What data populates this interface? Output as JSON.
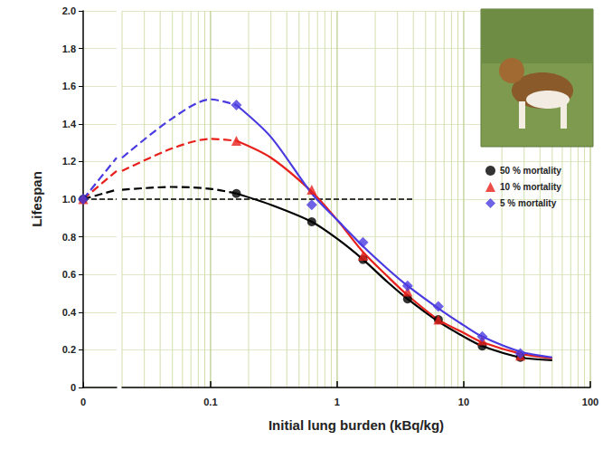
{
  "chart_data": {
    "type": "line",
    "x_label": "Initial lung burden (kBq/kg)",
    "y_label": "Lifespan",
    "log": "x",
    "grid": true,
    "legend": "top-right",
    "xlim": [
      0,
      100
    ],
    "xticks": [
      0,
      0.1,
      1,
      10,
      100
    ],
    "ylim": [
      0,
      2
    ],
    "yticks": [
      0,
      0.2,
      0.4,
      0.6,
      0.8,
      {
        "value": 1,
        "label": "1.0"
      },
      1.2,
      1.4,
      1.6,
      1.8,
      {
        "value": 2,
        "label": "2.0"
      }
    ],
    "x": [
      0,
      0.16,
      0.63,
      1.6,
      3.6,
      6.3,
      14,
      28
    ],
    "fit_x": [
      0,
      0.02,
      0.05,
      0.1,
      0.16,
      0.3,
      0.63,
      1,
      1.6,
      2.5,
      3.6,
      6.3,
      10,
      14,
      28,
      50
    ],
    "series": [
      {
        "name": "50 % mortality",
        "color": "#000000",
        "marker": "circle",
        "values": [
          1.0,
          1.03,
          0.88,
          0.68,
          0.47,
          0.36,
          0.22,
          0.16
        ],
        "fit": [
          1.0,
          1.05,
          1.065,
          1.055,
          1.03,
          0.97,
          0.88,
          0.79,
          0.68,
          0.56,
          0.47,
          0.35,
          0.27,
          0.22,
          0.16,
          0.145
        ]
      },
      {
        "name": "10 % mortality",
        "color": "#e8201c",
        "marker": "triangle",
        "values": [
          1.0,
          1.31,
          1.05,
          0.7,
          0.51,
          0.36,
          0.25,
          0.17
        ],
        "fit": [
          1.0,
          1.15,
          1.27,
          1.32,
          1.31,
          1.22,
          1.04,
          0.89,
          0.72,
          0.59,
          0.49,
          0.36,
          0.29,
          0.24,
          0.18,
          0.155
        ]
      },
      {
        "name": "5 % mortality",
        "color": "#4a3be0",
        "marker": "diamond",
        "values": [
          1.0,
          1.5,
          0.97,
          0.77,
          0.54,
          0.43,
          0.27,
          0.18
        ],
        "fit": [
          1.0,
          1.22,
          1.43,
          1.53,
          1.5,
          1.33,
          1.03,
          0.89,
          0.75,
          0.63,
          0.54,
          0.42,
          0.33,
          0.27,
          0.19,
          0.16
        ]
      }
    ],
    "reference_line": {
      "y": 1,
      "x": [
        0,
        4
      ],
      "color": "#000000",
      "line_style": "dashed"
    }
  }
}
